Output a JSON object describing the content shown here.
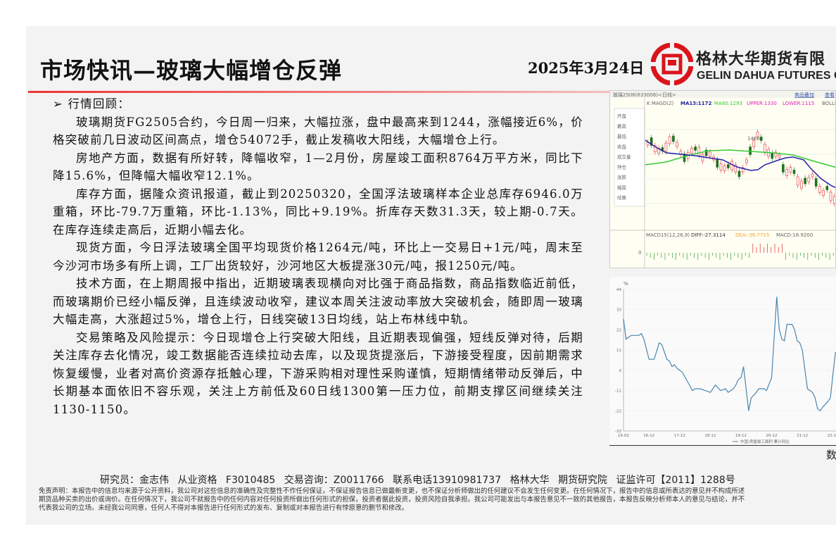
{
  "header": {
    "title": "市场快讯—玻璃大幅增仓反弹",
    "date": "2025年3月24日",
    "company_cn": "格林大华期货有限",
    "company_en": "GELIN DAHUA FUTURES C",
    "brand_color": "#d9151b"
  },
  "body": {
    "section_heading": "➢  行情回顾：",
    "paragraphs": [
      "玻璃期货FG2505合约，今日周一归来，大幅拉涨，盘中最高来到1244，涨幅接近6%，价格突破前几日波动区间高点，增仓54072手，截止发稿收大阳线，大幅增仓上行。",
      "房地产方面，数据有所好转，降幅收窄，1—2月份，房屋竣工面积8764万平方米，同比下降15.6%，但降幅大幅收窄12.1%。",
      "库存方面，据隆众资讯报道，截止到20250320，全国浮法玻璃样本企业总库存6946.0万重箱，环比-79.7万重箱，环比-1.13%，同比+9.19%。折库存天数31.3天，较上期-0.7天。在库存连续走高后，近期小幅去化。",
      "现货方面，今日浮法玻璃全国平均现货价格1264元/吨，环比上一交易日+1元/吨，周末至今沙河市场多有所上调，工厂出货较好，沙河地区大板提涨30元/吨，报1250元/吨。",
      "技术方面，在上期周报中指出，近期玻璃表现横向对比强于商品指数，商品指数临近前低，而玻璃期价已经小幅反弹，且连续波动收窄，建议本周关注波动率放大突破机会，随即周一玻璃大幅走高，大涨超过5%，增仓上行，日线突破13日均线，站上布林线中轨。",
      "交易策略及风险提示：今日现增仓上行突破大阳线，且近期表现偏强，短线反弹对待，后期关注库存去化情况，竣工数据能否连续拉动去库，以及现货提涨后，下游接受程度，因前期需求恢复缓慢，业者对高价资源存抵触心理，下游采购相对理性采购谨慎，短期情绪带动反弹后，中长期基本面依旧不容乐观，关注上方前低及60日线1300第一压力位，前期支撑区间继续关注1130-1150。"
    ]
  },
  "kline_chart": {
    "title": "玻璃2506(633006)<日线>",
    "links": [
      "商品叠加",
      "查看"
    ],
    "indicator_prefix": "K  MAGD(2)",
    "ma13": "MA13:1172",
    "ma60": "MA60:1293",
    "upper": "UPPER:1330",
    "lower": "LOWER:1115",
    "boll": "BOLLM",
    "side_labels": [
      "开盘",
      "最高",
      "最低",
      "收盘",
      "成交量",
      "持仓",
      "涨跌",
      "幅度",
      "结算"
    ],
    "peak_label": "1466",
    "macd_label": "MACD15(12,26,9)",
    "diff": "DIFF:-27.3114",
    "dea": "DEA:-36.7715",
    "macd": "MACD:18.9200",
    "zero_label": "0"
  },
  "chart_data": {
    "type": "line",
    "ylabel": "%",
    "ylim": [
      -33,
      44
    ],
    "yticks": [
      "44",
      "33",
      "22",
      "11",
      "0",
      "-11",
      "-22",
      "-33"
    ],
    "xticks": [
      "16-02",
      "16-12",
      "17-12",
      "18-12",
      "19-12",
      "20-12",
      "21-12",
      "22-12"
    ],
    "legend": "中国:房屋竣工面积:累计同比",
    "series": [
      {
        "name": "中国:房屋竣工面积:累计同比",
        "color": "#4a86b0",
        "points": [
          [
            "2016-02",
            28
          ],
          [
            "2016-03",
            17
          ],
          [
            "2016-05",
            19
          ],
          [
            "2016-08",
            19
          ],
          [
            "2016-09",
            20
          ],
          [
            "2016-10",
            17
          ],
          [
            "2016-12",
            6
          ],
          [
            "2017-02",
            6
          ],
          [
            "2017-04",
            15
          ],
          [
            "2017-05",
            14
          ],
          [
            "2017-07",
            6
          ],
          [
            "2017-08",
            5
          ],
          [
            "2017-09",
            2
          ],
          [
            "2017-10",
            3
          ],
          [
            "2017-11",
            1
          ],
          [
            "2018-01",
            -1
          ],
          [
            "2018-03",
            -6
          ],
          [
            "2018-05",
            -11
          ],
          [
            "2018-06",
            -10
          ],
          [
            "2018-08",
            -10
          ],
          [
            "2018-10",
            -11
          ],
          [
            "2018-12",
            -12
          ],
          [
            "2019-02",
            -8
          ],
          [
            "2019-04",
            -11
          ],
          [
            "2019-06",
            -10
          ],
          [
            "2019-07",
            -12
          ],
          [
            "2019-09",
            -10
          ],
          [
            "2019-10",
            -8
          ],
          [
            "2019-11",
            -5
          ],
          [
            "2019-12",
            -4
          ],
          [
            "2020-01",
            2
          ],
          [
            "2020-03",
            -22
          ],
          [
            "2020-04",
            -15
          ],
          [
            "2020-06",
            -12
          ],
          [
            "2020-07",
            -10
          ],
          [
            "2020-09",
            -10
          ],
          [
            "2020-10",
            -11
          ],
          [
            "2020-12",
            -4
          ],
          [
            "2021-02",
            40
          ],
          [
            "2021-03",
            22
          ],
          [
            "2021-04",
            17
          ],
          [
            "2021-05",
            16
          ],
          [
            "2021-06",
            25
          ],
          [
            "2021-08",
            25
          ],
          [
            "2021-09",
            22
          ],
          [
            "2021-10",
            16
          ],
          [
            "2021-11",
            15
          ],
          [
            "2021-12",
            11
          ],
          [
            "2022-02",
            -10
          ],
          [
            "2022-04",
            -12
          ],
          [
            "2022-05",
            -15
          ],
          [
            "2022-06",
            -21
          ],
          [
            "2022-07",
            -22
          ],
          [
            "2022-08",
            -20
          ],
          [
            "2022-10",
            -17
          ],
          [
            "2022-11",
            -15
          ],
          [
            "2022-12",
            -2
          ],
          [
            "2023-01",
            10
          ]
        ]
      }
    ]
  },
  "source_partial": "数",
  "footer": {
    "author": "研究员：金志伟  从业资格 F3010485  交易咨询：Z0011766    联系电话13910981737    格林大华 期货研究院 证监许可【2011】1288号",
    "disclaimer": [
      "免责声明：本报告中的信息均来源于公开资料，我公司对这些信息的准确性及完整性不作任何保证，不保证报告信息已做最新变更，也不保证分析师做出的任何建议不会发生任何变更。在任何情况下，报告中的信息或所表达的意见并不构成所述",
      "期货品种买卖的出价或询价。在任何情况下，我公司不就报告中的任何内容对任何投资所做出任何形式的担保，投资者据此投资，投资风险自我承担。我公司可能发出与本报告意见不一致的其他报告，本报告反映分析师本人的意见与结论，并不",
      "代表我公司的立场。未经我公司同意，任何人不得对本报告进行任何形式的发布、复制或对本报告进行有悖原意的删节和修改。"
    ]
  }
}
